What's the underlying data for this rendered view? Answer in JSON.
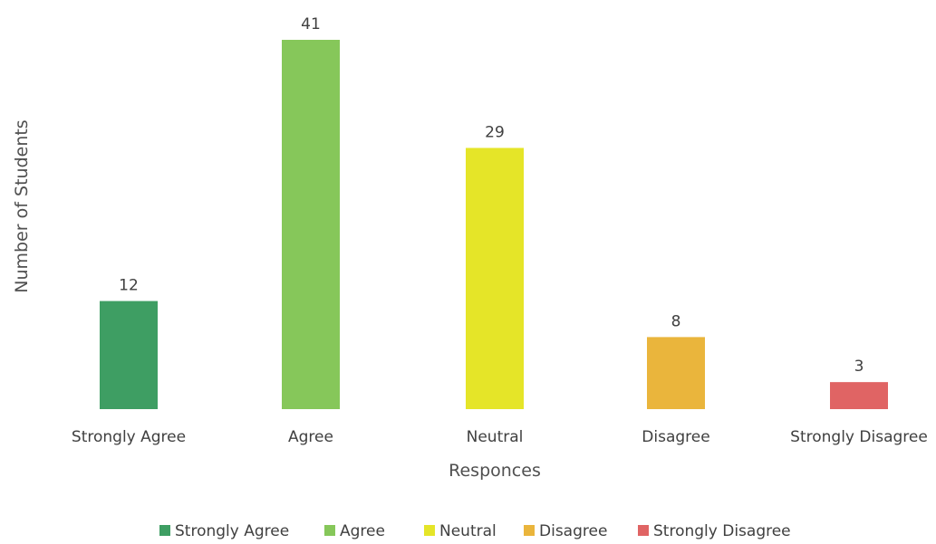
{
  "chart_data": {
    "type": "bar",
    "categories": [
      "Strongly Agree",
      "Agree",
      "Neutral",
      "Disagree",
      "Strongly Disagree"
    ],
    "values": [
      12,
      41,
      29,
      8,
      3
    ],
    "colors": [
      "#3e9e63",
      "#86c75a",
      "#e5e528",
      "#eab53c",
      "#e06464"
    ],
    "xlabel": "Responces",
    "ylabel": "Number of Students",
    "ylim": [
      0,
      41
    ],
    "grid": false,
    "legend": {
      "position": "bottom",
      "entries": [
        "Strongly Agree",
        "Agree",
        "Neutral",
        "Disagree",
        "Strongly Disagree"
      ]
    }
  }
}
